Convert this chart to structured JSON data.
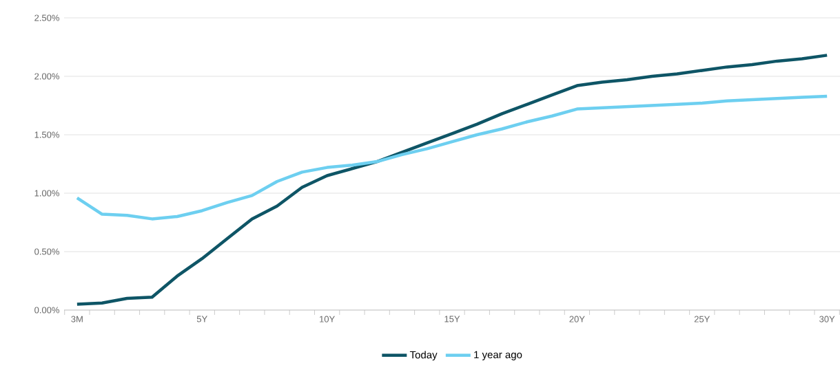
{
  "chart_data": {
    "type": "line",
    "categories": [
      "3M",
      null,
      null,
      null,
      null,
      "5Y",
      null,
      null,
      null,
      null,
      "10Y",
      null,
      null,
      null,
      null,
      "15Y",
      null,
      null,
      null,
      null,
      "20Y",
      null,
      null,
      null,
      null,
      "25Y",
      null,
      null,
      null,
      null,
      "30Y"
    ],
    "series": [
      {
        "name": "Today",
        "color": "#0e5566",
        "values": [
          0.05,
          0.06,
          0.1,
          0.11,
          0.29,
          0.44,
          0.61,
          0.78,
          0.89,
          1.05,
          1.15,
          1.21,
          1.27,
          1.35,
          1.43,
          1.51,
          1.59,
          1.68,
          1.76,
          1.84,
          1.92,
          1.95,
          1.97,
          2.0,
          2.02,
          2.05,
          2.08,
          2.1,
          2.13,
          2.15,
          2.18
        ]
      },
      {
        "name": "1 year ago",
        "color": "#6dcff0",
        "values": [
          0.96,
          0.82,
          0.81,
          0.78,
          0.8,
          0.85,
          0.92,
          0.98,
          1.1,
          1.18,
          1.22,
          1.24,
          1.27,
          1.33,
          1.38,
          1.44,
          1.5,
          1.55,
          1.61,
          1.66,
          1.72,
          1.73,
          1.74,
          1.75,
          1.76,
          1.77,
          1.79,
          1.8,
          1.81,
          1.82,
          1.83
        ]
      }
    ],
    "ylim": [
      0,
      2.5
    ],
    "yticks": [
      {
        "value": 0,
        "label": "0.00%"
      },
      {
        "value": 0.5,
        "label": "0.50%"
      },
      {
        "value": 1,
        "label": "1.00%"
      },
      {
        "value": 1.5,
        "label": "1.50%"
      },
      {
        "value": 2,
        "label": "2.00%"
      },
      {
        "value": 2.5,
        "label": "2.50%"
      }
    ],
    "grid": "y",
    "legend": "bottom",
    "marker": "none",
    "line_style": "solid"
  }
}
